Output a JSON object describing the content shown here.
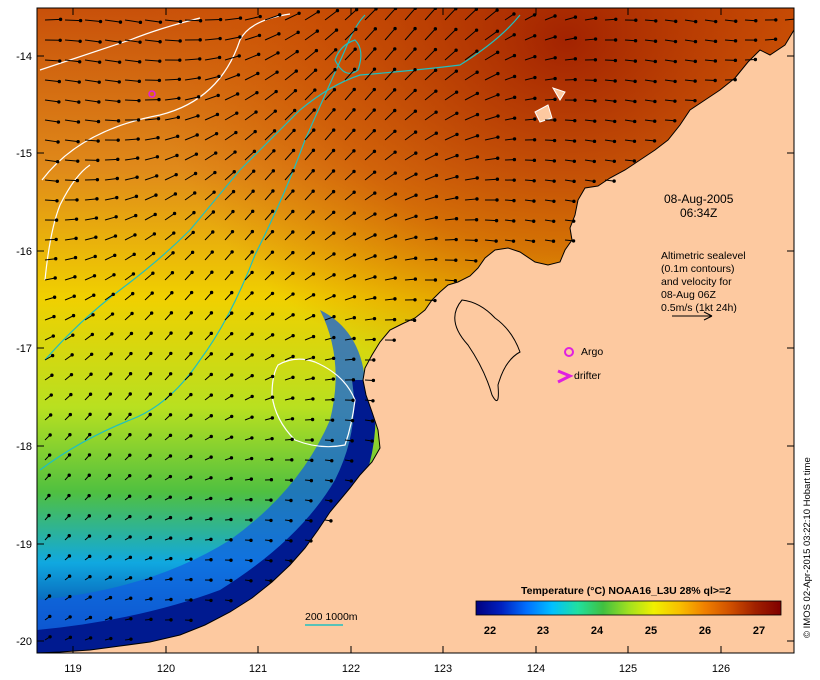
{
  "map": {
    "x_ticks": [
      "119",
      "120",
      "121",
      "122",
      "123",
      "124",
      "125",
      "126"
    ],
    "y_ticks": [
      "-14",
      "-15",
      "-16",
      "-17",
      "-18",
      "-19",
      "-20"
    ],
    "date_line1": "08-Aug-2005",
    "date_line2": "06:34Z",
    "altimetry_lines": [
      "Altimetric sealevel",
      "(0.1m contours)",
      "and velocity for",
      "08-Aug 06Z",
      "0.5m/s (1kt 24h)"
    ],
    "argo_label": "Argo",
    "drifter_label": "drifter",
    "depth_label": "200  1000m",
    "credit": "© IMOS 02-Apr-2015 03:22:10 Hobart time",
    "colors": {
      "land": "#fdc9a0",
      "argo": "#e020e0",
      "drifter": "#e020e0",
      "contour": "#ffffff",
      "isobath": "#20c0c0"
    }
  },
  "colorbar": {
    "title": "Temperature (°C) NOAA16_L3U 28% ql>=2",
    "labels": [
      "22",
      "23",
      "24",
      "25",
      "26",
      "27"
    ],
    "stops": [
      "#00007f",
      "#0020c0",
      "#0070ff",
      "#00c0ff",
      "#20e0a0",
      "#40c040",
      "#a0e020",
      "#f0f000",
      "#f8c000",
      "#f08000",
      "#d05000",
      "#a02000",
      "#800000"
    ]
  }
}
